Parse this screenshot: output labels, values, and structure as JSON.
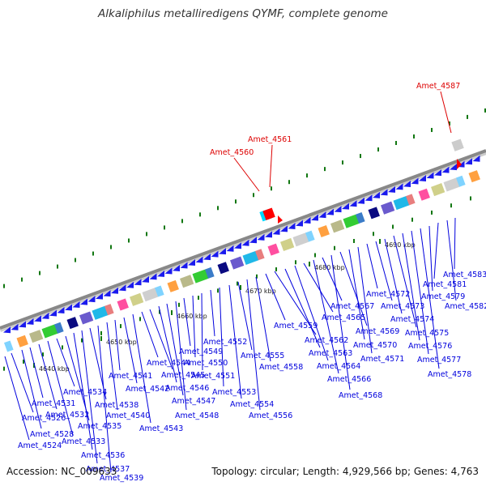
{
  "title": "Alkaliphilus metalliredigens QYMF, complete genome",
  "footer": {
    "accession": "Accession: NC_009633",
    "summary": "Topology: circular; Length: 4,929,566 bp; Genes: 4,763"
  },
  "colors": {
    "backbone": "#888888",
    "gene_arrow": "#1a1aee",
    "label_blue": "#0000dd",
    "label_red": "#dd0000",
    "tick_green": "#117711"
  },
  "scale_labels": [
    "4640 kbp",
    "4650 kbp",
    "4660 kbp",
    "4670 kbp",
    "4680 kbp",
    "4690 kbp"
  ],
  "gene_labels_below": [
    "Amet_4524",
    "Amet_4526",
    "Amet_4528",
    "Amet_4531",
    "Amet_4532",
    "Amet_4533",
    "Amet_4534",
    "Amet_4535",
    "Amet_4536",
    "Amet_4537",
    "Amet_4538",
    "Amet_4539",
    "Amet_4540",
    "Amet_4541",
    "Amet_4542",
    "Amet_4543",
    "Amet_4544",
    "Amet_4545",
    "Amet_4546",
    "Amet_4547",
    "Amet_4548",
    "Amet_4549",
    "Amet_4550",
    "Amet_4551",
    "Amet_4552",
    "Amet_4553",
    "Amet_4554",
    "Amet_4555",
    "Amet_4556",
    "Amet_4558",
    "Amet_4559",
    "Amet_4562",
    "Amet_4563",
    "Amet_4564",
    "Amet_4565",
    "Amet_4566",
    "Amet_4567",
    "Amet_4568",
    "Amet_4569",
    "Amet_4570",
    "Amet_4571",
    "Amet_4572",
    "Amet_4573",
    "Amet_4574",
    "Amet_4575",
    "Amet_4576",
    "Amet_4577",
    "Amet_4578",
    "Amet_4579",
    "Amet_4581",
    "Amet_4582",
    "Amet_4583"
  ],
  "gene_labels_above": [
    "Amet_4560",
    "Amet_4561",
    "Amet_4587"
  ]
}
